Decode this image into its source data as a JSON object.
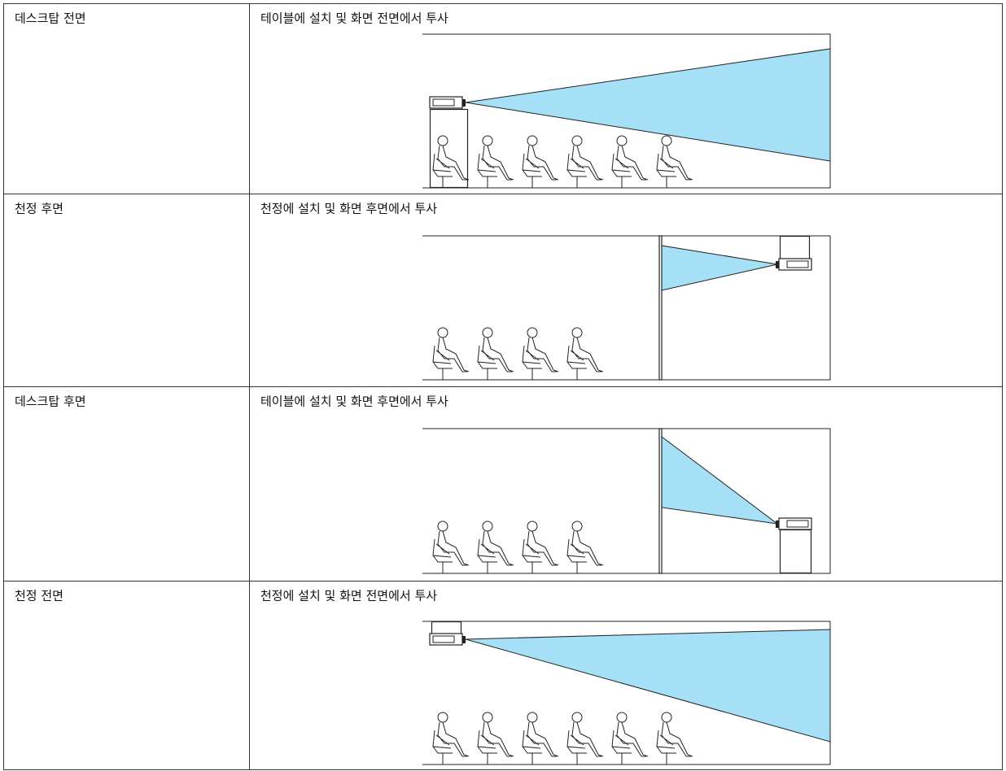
{
  "table": {
    "rows": [
      [
        "데스크탑 전면",
        "테이블에 설치 및 화면 전면에서 투사"
      ],
      [
        "천정 후면",
        "천정에 설치 및 화면 후면에서 투사"
      ],
      [
        "데스크탑 후면",
        "테이블에 설치 및 화면 후면에서 투사"
      ],
      [
        "천정 전면",
        "천정에 설치 및 화면 전면에서 투사"
      ]
    ]
  }
}
